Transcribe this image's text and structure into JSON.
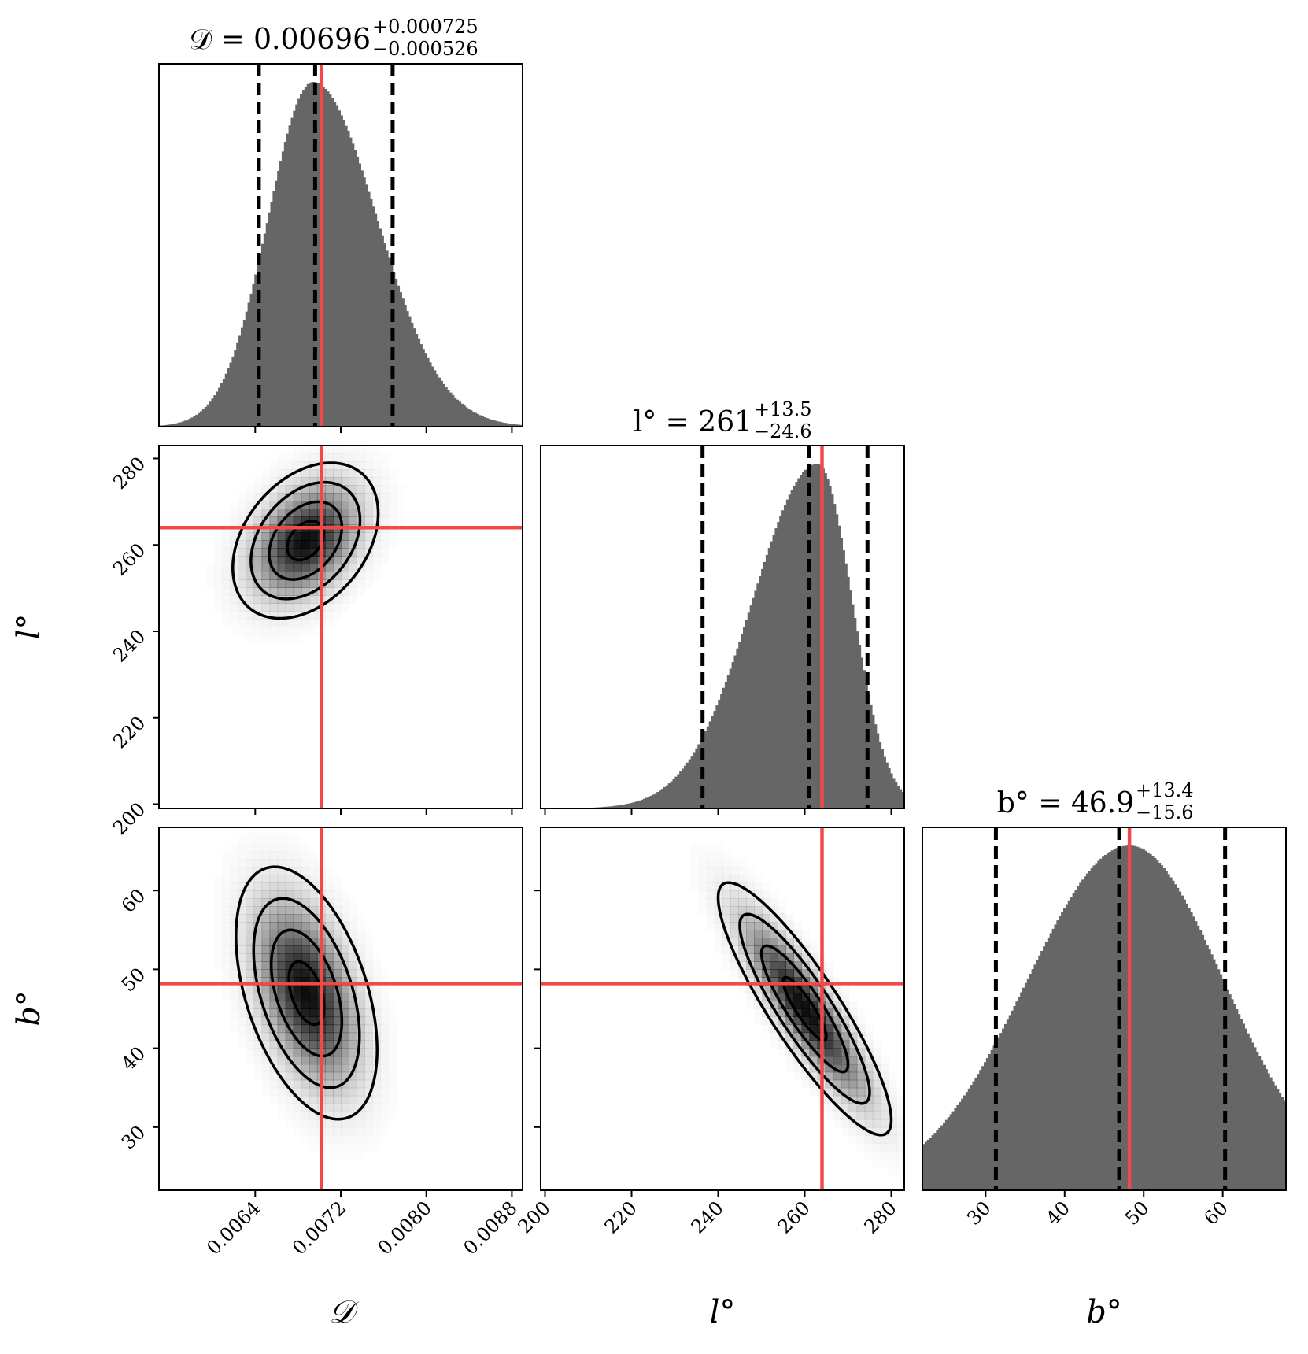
{
  "chart_data": {
    "type": "corner",
    "params": [
      {
        "key": "D",
        "label": "𝒟",
        "range": [
          0.0055,
          0.0089
        ],
        "ticks": [
          0.0064,
          0.0072,
          0.008,
          0.0088
        ],
        "tick_labels": [
          "0.0064",
          "0.0072",
          "0.0080",
          "0.0088"
        ]
      },
      {
        "key": "l",
        "label": "l°",
        "range": [
          199,
          283
        ],
        "ticks": [
          200,
          220,
          240,
          260,
          280
        ],
        "tick_labels": [
          "200",
          "220",
          "240",
          "260",
          "280"
        ]
      },
      {
        "key": "b",
        "label": "b°",
        "range": [
          22,
          68
        ],
        "ticks": [
          30,
          40,
          50,
          60
        ],
        "tick_labels": [
          "30",
          "40",
          "50",
          "60"
        ]
      }
    ],
    "titles": [
      {
        "lhs": "𝒟 = 0.00696",
        "plus": "+0.000725",
        "minus": "−0.000526"
      },
      {
        "lhs": "l° = 261",
        "plus": "+13.5",
        "minus": "−24.6"
      },
      {
        "lhs": "b° = 46.9",
        "plus": "+13.4",
        "minus": "−15.6"
      }
    ],
    "histograms": [
      {
        "param": "D",
        "median": 0.00696,
        "q16": 0.006434,
        "q84": 0.007685,
        "truth": 0.00702,
        "mode": 0.00694,
        "sigma_left": 0.00042,
        "sigma_right": 0.0006
      },
      {
        "param": "l",
        "median": 261,
        "q16": 236.4,
        "q84": 274.5,
        "truth": 264,
        "mode": 263,
        "sigma_left": 15,
        "sigma_right": 8
      },
      {
        "param": "b",
        "median": 46.9,
        "q16": 31.3,
        "q84": 60.3,
        "truth": 48.2,
        "mode": 48.2,
        "sigma_left": 13,
        "sigma_right": 12
      }
    ],
    "panels_2d": [
      {
        "x": "D",
        "y": "l",
        "center": [
          0.00687,
          261
        ],
        "sx": 0.00034,
        "sy": 9,
        "rho": 0.35
      },
      {
        "x": "D",
        "y": "b",
        "center": [
          0.00688,
          47
        ],
        "sx": 0.00033,
        "sy": 8,
        "rho": -0.45
      },
      {
        "x": "l",
        "y": "b",
        "center": [
          260,
          45
        ],
        "sx": 10,
        "sy": 8,
        "rho": -0.88
      }
    ],
    "truth": {
      "D": 0.00702,
      "l": 264,
      "b": 48.2
    },
    "colors": {
      "hist_fill": "#666666",
      "truth_line": "#f24848",
      "quantile_line": "#000000",
      "contour": "#000000",
      "density": "#000000"
    }
  }
}
